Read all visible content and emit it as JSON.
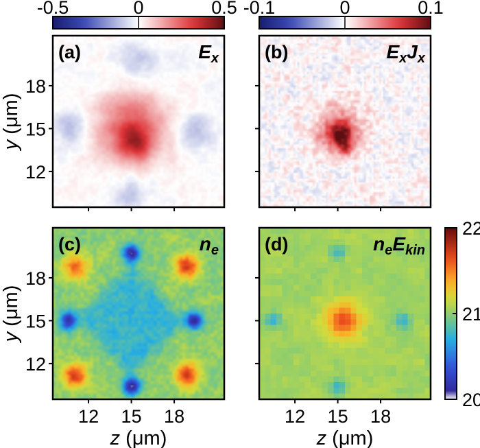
{
  "chart_data": [
    {
      "type": "heatmap",
      "panel": "(a)",
      "quantity": "E",
      "quantity_sub": "x",
      "colormap": "blue-white-red (diverging)",
      "colorbar": {
        "ticks": [
          "-0.5",
          "0",
          "0.5"
        ],
        "range": [
          -0.5,
          0.5
        ]
      },
      "xticks": [
        "12",
        "15",
        "18"
      ],
      "yticks": [
        "12",
        "15",
        "18"
      ],
      "ylabel": {
        "var": "y",
        "unit": " (μm)"
      },
      "xlim": [
        9.5,
        21.5
      ],
      "ylim": [
        9.5,
        21.5
      ],
      "features": [
        {
          "kind": "blob",
          "center": [
            15,
            15
          ],
          "radius": 3.4,
          "value": 0.28
        },
        {
          "kind": "blob",
          "center": [
            15.3,
            13.9
          ],
          "radius": 1.6,
          "value": 0.2
        },
        {
          "kind": "blob",
          "center": [
            10.6,
            15.2
          ],
          "radius": 1.7,
          "value": -0.12
        },
        {
          "kind": "blob",
          "center": [
            19.6,
            14.8
          ],
          "radius": 1.7,
          "value": -0.12
        },
        {
          "kind": "blob",
          "center": [
            15,
            10.4
          ],
          "radius": 1.7,
          "value": -0.1
        },
        {
          "kind": "blob",
          "center": [
            15.4,
            19.7
          ],
          "radius": 1.8,
          "value": -0.09
        }
      ]
    },
    {
      "type": "heatmap",
      "panel": "(b)",
      "quantity": "E",
      "quantity_sub": "x",
      "quantity2": "J",
      "quantity2_sub": "x",
      "colormap": "blue-white-red (diverging)",
      "colorbar": {
        "ticks": [
          "-0.1",
          "0",
          "0.1"
        ],
        "range": [
          -0.1,
          0.1
        ]
      },
      "xticks": [
        "12",
        "15",
        "18"
      ],
      "yticks": [
        "12",
        "15",
        "18"
      ],
      "xlim": [
        9.5,
        21.5
      ],
      "ylim": [
        9.5,
        21.5
      ],
      "features": [
        {
          "kind": "blob",
          "center": [
            15,
            15
          ],
          "radius": 2.6,
          "value": 0.04
        },
        {
          "kind": "blob",
          "center": [
            15.2,
            14.6
          ],
          "radius": 1.3,
          "value": 0.07
        },
        {
          "kind": "blob",
          "center": [
            15.5,
            13.6
          ],
          "radius": 0.8,
          "value": 0.035
        }
      ]
    },
    {
      "type": "heatmap",
      "panel": "(c)",
      "quantity": "n",
      "quantity_sub": "e",
      "colormap": "jet",
      "colorbar": {
        "ticks": [
          "20",
          "21",
          "22"
        ],
        "range": [
          20,
          22
        ]
      },
      "xticks": [
        "12",
        "15",
        "18"
      ],
      "yticks": [
        "12",
        "15",
        "18"
      ],
      "xlabel": {
        "var": "z",
        "unit": " (μm)"
      },
      "ylabel": {
        "var": "y",
        "unit": " (μm)"
      },
      "xlim": [
        9.5,
        21.5
      ],
      "ylim": [
        9.5,
        21.5
      ],
      "features": [
        {
          "kind": "background",
          "value": 21.0
        },
        {
          "kind": "diamond",
          "center": [
            15,
            15
          ],
          "radius": 4.6,
          "value": 20.75
        },
        {
          "kind": "blob",
          "center": [
            15,
            19.7
          ],
          "radius": 0.9,
          "value": 20.1
        },
        {
          "kind": "blob",
          "center": [
            15,
            10.4
          ],
          "radius": 0.9,
          "value": 20.1
        },
        {
          "kind": "blob",
          "center": [
            10.6,
            15
          ],
          "radius": 0.9,
          "value": 20.1
        },
        {
          "kind": "blob",
          "center": [
            19.4,
            15
          ],
          "radius": 0.9,
          "value": 20.1
        },
        {
          "kind": "ridge",
          "center": [
            18.9,
            18.8
          ],
          "radius": 1.2,
          "value": 21.7
        },
        {
          "kind": "ridge",
          "center": [
            11.1,
            18.8
          ],
          "radius": 1.2,
          "value": 21.6
        },
        {
          "kind": "ridge",
          "center": [
            18.9,
            11.2
          ],
          "radius": 1.2,
          "value": 21.7
        },
        {
          "kind": "ridge",
          "center": [
            11.1,
            11.2
          ],
          "radius": 1.2,
          "value": 21.7
        }
      ]
    },
    {
      "type": "heatmap",
      "panel": "(d)",
      "quantity": "n",
      "quantity_sub": "e",
      "quantity2": "E",
      "quantity2_sub": "kin",
      "colormap": "jet",
      "colorbar": {
        "ticks": [
          "20",
          "21",
          "22"
        ],
        "range": [
          20,
          22
        ]
      },
      "xticks": [
        "12",
        "15",
        "18"
      ],
      "yticks": [
        "12",
        "15",
        "18"
      ],
      "xlabel": {
        "var": "z",
        "unit": " (μm)"
      },
      "xlim": [
        9.5,
        21.5
      ],
      "ylim": [
        9.5,
        21.5
      ],
      "features": [
        {
          "kind": "background",
          "value": 21.05
        },
        {
          "kind": "blob",
          "center": [
            15.4,
            15
          ],
          "radius": 1.8,
          "value": 21.65
        },
        {
          "kind": "blob",
          "center": [
            15,
            19.8
          ],
          "radius": 0.8,
          "value": 20.75
        },
        {
          "kind": "blob",
          "center": [
            15,
            10.3
          ],
          "radius": 0.8,
          "value": 20.75
        },
        {
          "kind": "blob",
          "center": [
            10.5,
            15
          ],
          "radius": 0.8,
          "value": 20.75
        },
        {
          "kind": "blob",
          "center": [
            19.6,
            15
          ],
          "radius": 0.8,
          "value": 20.75
        }
      ]
    }
  ]
}
